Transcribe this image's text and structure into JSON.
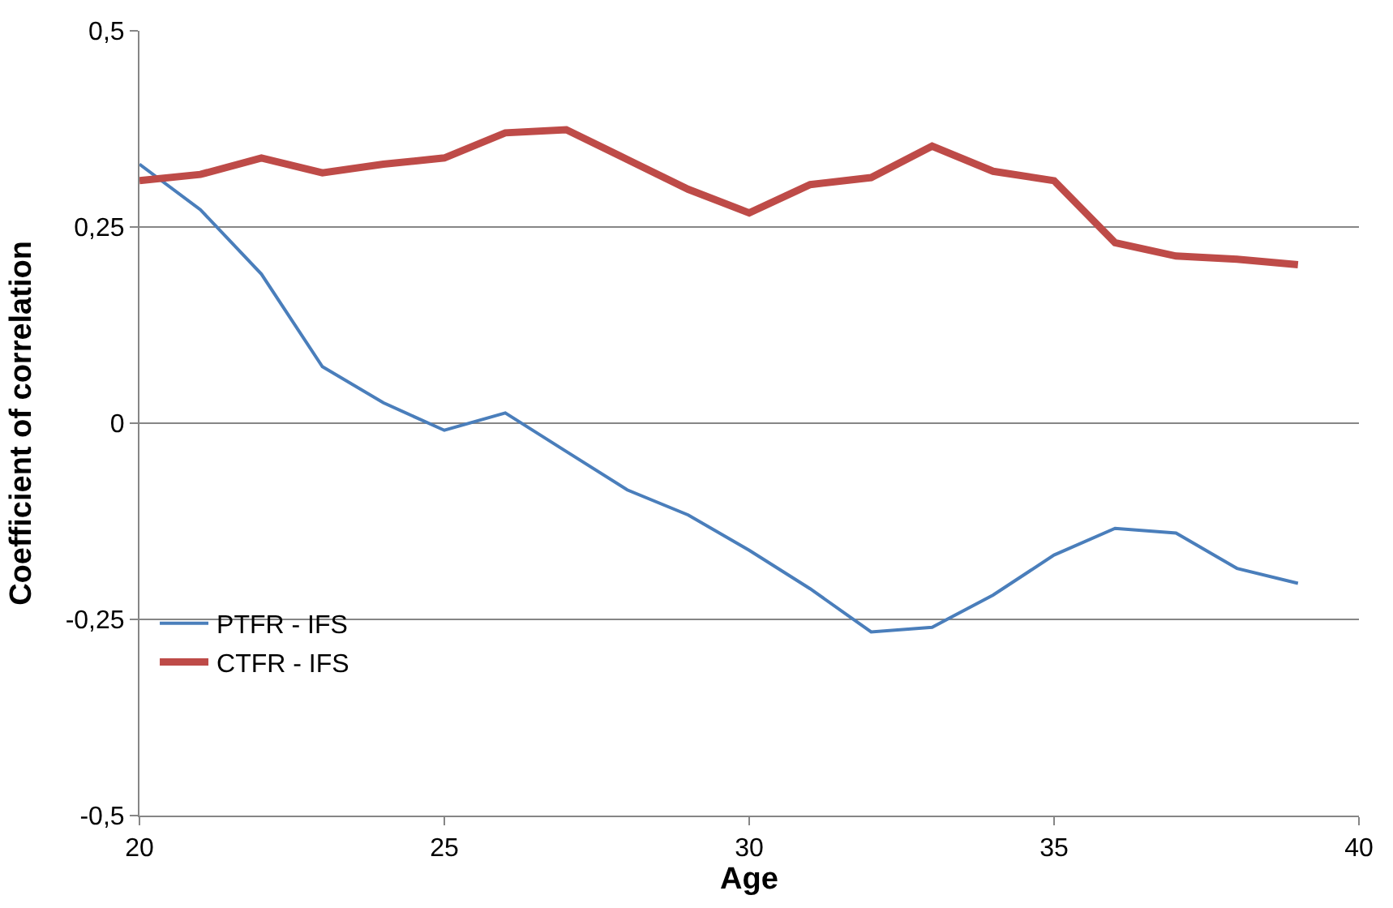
{
  "chart_data": {
    "type": "line",
    "xlabel": "Age",
    "ylabel": "Coefficient of correlation",
    "x": [
      20,
      21,
      22,
      23,
      24,
      25,
      26,
      27,
      28,
      29,
      30,
      31,
      32,
      33,
      34,
      35,
      36,
      37,
      38,
      39
    ],
    "series": [
      {
        "name": "PTFR - IFS",
        "color": "#4a7ebb",
        "values": [
          0.33,
          0.272,
          0.19,
          0.072,
          0.026,
          -0.009,
          0.013,
          -0.036,
          -0.085,
          -0.117,
          -0.162,
          -0.211,
          -0.266,
          -0.26,
          -0.219,
          -0.168,
          -0.134,
          -0.14,
          -0.185,
          -0.204
        ]
      },
      {
        "name": "CTFR - IFS",
        "color": "#be4b48",
        "values": [
          0.309,
          0.317,
          0.338,
          0.319,
          0.33,
          0.338,
          0.37,
          0.374,
          0.336,
          0.298,
          0.268,
          0.304,
          0.313,
          0.353,
          0.321,
          0.309,
          0.23,
          0.213,
          0.209,
          0.202
        ]
      }
    ],
    "xlim": [
      20,
      40
    ],
    "xticks": [
      20,
      25,
      30,
      35,
      40
    ],
    "ylim": [
      -0.5,
      0.5
    ],
    "yticks": [
      {
        "value": -0.5,
        "label": "-0,5"
      },
      {
        "value": -0.25,
        "label": "-0,25"
      },
      {
        "value": 0,
        "label": "0"
      },
      {
        "value": 0.25,
        "label": "0,25"
      },
      {
        "value": 0.5,
        "label": "0,5"
      }
    ],
    "grid": "y",
    "legend": "bottom left",
    "marker": "none",
    "line_style": "solid"
  }
}
